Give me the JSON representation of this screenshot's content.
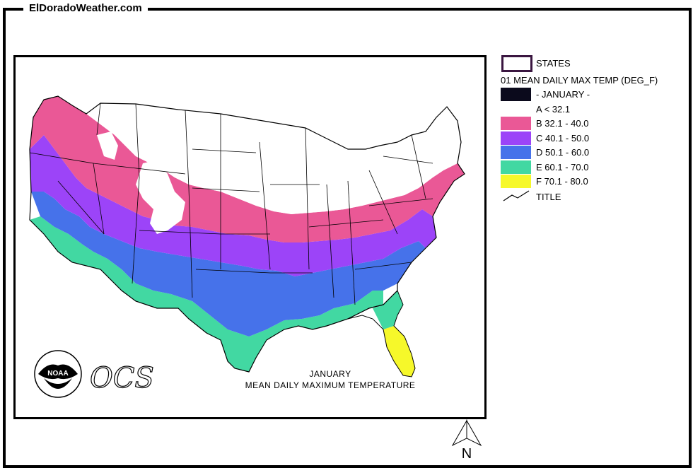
{
  "site_title": "ElDoradoWeather.com",
  "legend": {
    "states_label": "STATES",
    "layer_title": "01 MEAN DAILY MAX TEMP (DEG_F)",
    "period_label": "- JANUARY -",
    "classes": [
      {
        "label": "A < 32.1",
        "color": "#0b0a1c"
      },
      {
        "label": "B 32.1 - 40.0",
        "color": "#ea5896"
      },
      {
        "label": "C 40.1 - 50.0",
        "color": "#9c44f8"
      },
      {
        "label": "D 50.1 - 60.0",
        "color": "#4672ea"
      },
      {
        "label": "E 60.1 - 70.0",
        "color": "#42d8a2"
      },
      {
        "label": "F 70.1 - 80.0",
        "color": "#f6f82a"
      }
    ],
    "title_label": "TITLE"
  },
  "map": {
    "caption_month": "JANUARY",
    "caption_title": "MEAN DAILY MAXIMUM TEMPERATURE",
    "agency_logo": "NOAA",
    "agency_text": "OCS",
    "north_label": "N",
    "land_color_cold": "#ffffff",
    "state_line_color": "#000000"
  }
}
